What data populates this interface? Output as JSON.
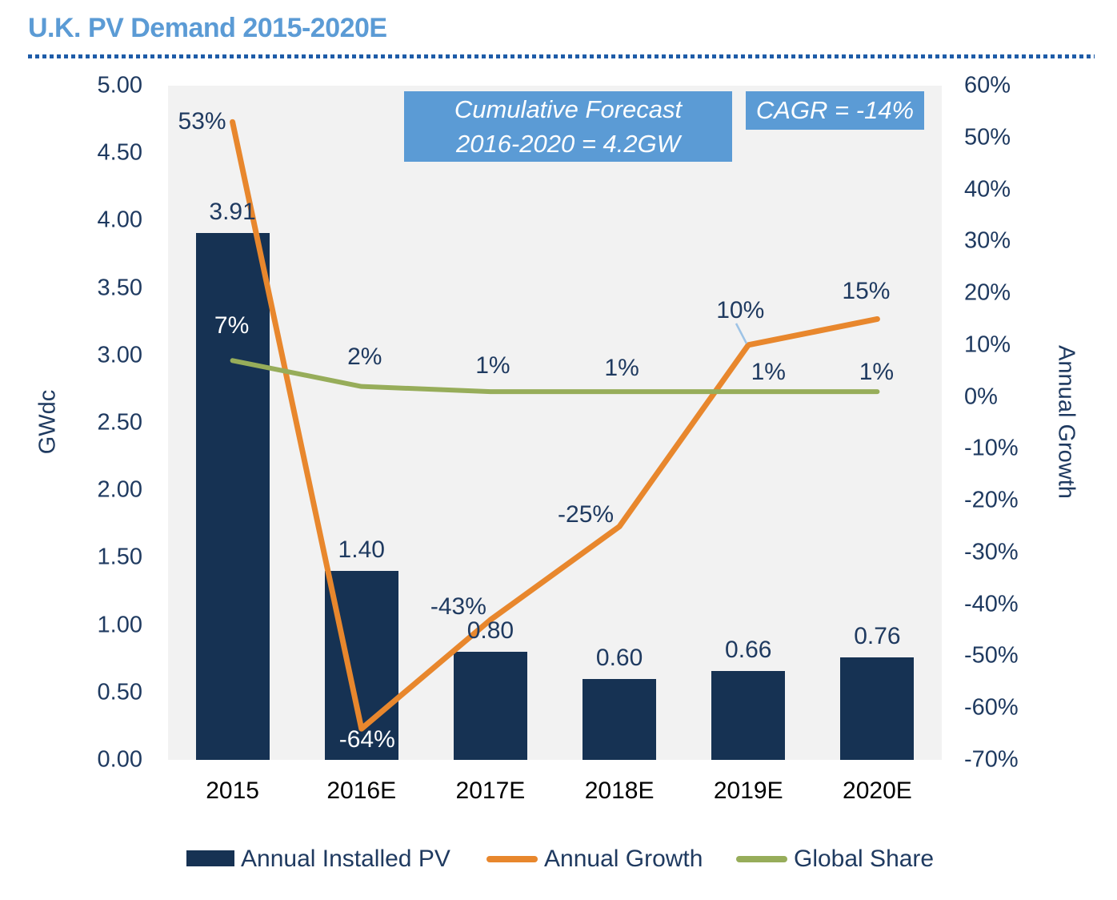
{
  "page": {
    "title": "U.K. PV Demand 2015-2020E"
  },
  "annotations": {
    "forecast": {
      "line1": "Cumulative Forecast",
      "line2": "2016-2020 = 4.2GW"
    },
    "cagr": {
      "text": "CAGR = -14%"
    }
  },
  "colors": {
    "title": "#5B9BD5",
    "rule_dots": "#1E5CA8",
    "text": "#1F3A60",
    "annotation_box": "#5B9BD5",
    "plot_background": "#F2F2F2",
    "leader_line": "#9DC3E6"
  },
  "chart_data": {
    "type": "combo",
    "categories": [
      "2015",
      "2016E",
      "2017E",
      "2018E",
      "2019E",
      "2020E"
    ],
    "left_axis": {
      "title": "GWdc",
      "min": 0,
      "max": 5,
      "ticks": [
        "5.00",
        "4.50",
        "4.00",
        "3.50",
        "3.00",
        "2.50",
        "2.00",
        "1.50",
        "1.00",
        "0.50",
        "0.00"
      ]
    },
    "right_axis": {
      "title": "Annual Growth",
      "min": -70,
      "max": 60,
      "ticks": [
        "60%",
        "50%",
        "40%",
        "30%",
        "20%",
        "10%",
        "0%",
        "-10%",
        "-20%",
        "-30%",
        "-40%",
        "-50%",
        "-60%",
        "-70%"
      ]
    },
    "series": [
      {
        "name": "Annual Installed PV",
        "type": "bar",
        "axis": "left",
        "color": "#163253",
        "values": [
          3.91,
          1.4,
          0.8,
          0.6,
          0.66,
          0.76
        ],
        "labels": [
          "3.91",
          "1.40",
          "0.80",
          "0.60",
          "0.66",
          "0.76"
        ]
      },
      {
        "name": "Annual Growth",
        "type": "line",
        "axis": "right",
        "color": "#E8872D",
        "values": [
          53,
          -64,
          -43,
          -25,
          10,
          15
        ],
        "labels": [
          "53%",
          "-64%",
          "-43%",
          "-25%",
          "10%",
          "15%"
        ]
      },
      {
        "name": "Global Share",
        "type": "line",
        "axis": "right",
        "color": "#97AD5A",
        "values": [
          7,
          2,
          1,
          1,
          1,
          1
        ],
        "labels": [
          "7%",
          "2%",
          "1%",
          "1%",
          "1%",
          "1%"
        ]
      }
    ],
    "legend_position": "bottom",
    "grid": false
  }
}
